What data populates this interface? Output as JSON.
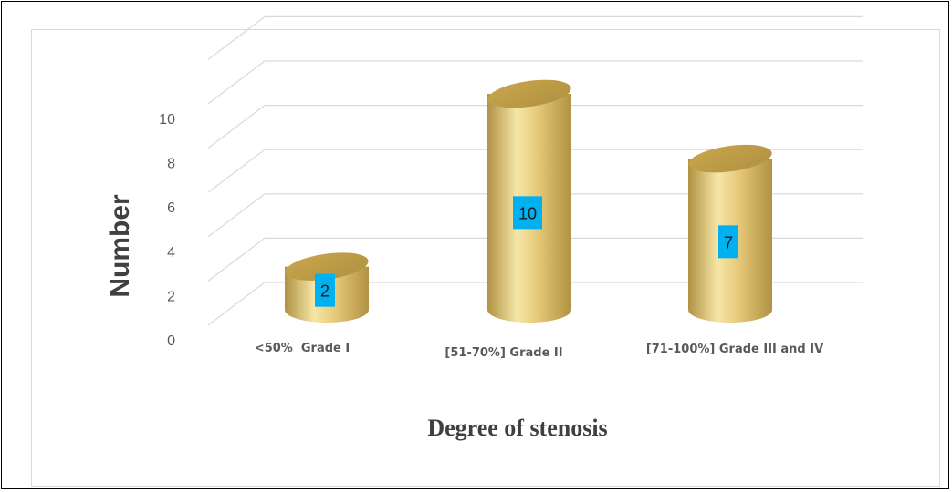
{
  "chart_data": {
    "type": "bar",
    "style": "3d-cylinder",
    "categories": [
      "<50%  Grade I",
      "[51-70%] Grade II",
      "[71-100%] Grade III and IV"
    ],
    "values": [
      2,
      10,
      7
    ],
    "data_labels": [
      "2",
      "10",
      "7"
    ],
    "xlabel": "Degree of stenosis",
    "ylabel": "Number",
    "yticks": [
      "0",
      "2",
      "4",
      "6",
      "8",
      "10"
    ],
    "ylim": [
      0,
      12
    ],
    "grid": true,
    "legend": "none",
    "colors": {
      "bar_body": "#e6c978",
      "bar_highlight": "#f6e6a8",
      "bar_shadow": "#b09242",
      "bar_top": "#c9a54c",
      "label_box": "#00b0f0",
      "grid": "#d9d9d9"
    }
  }
}
